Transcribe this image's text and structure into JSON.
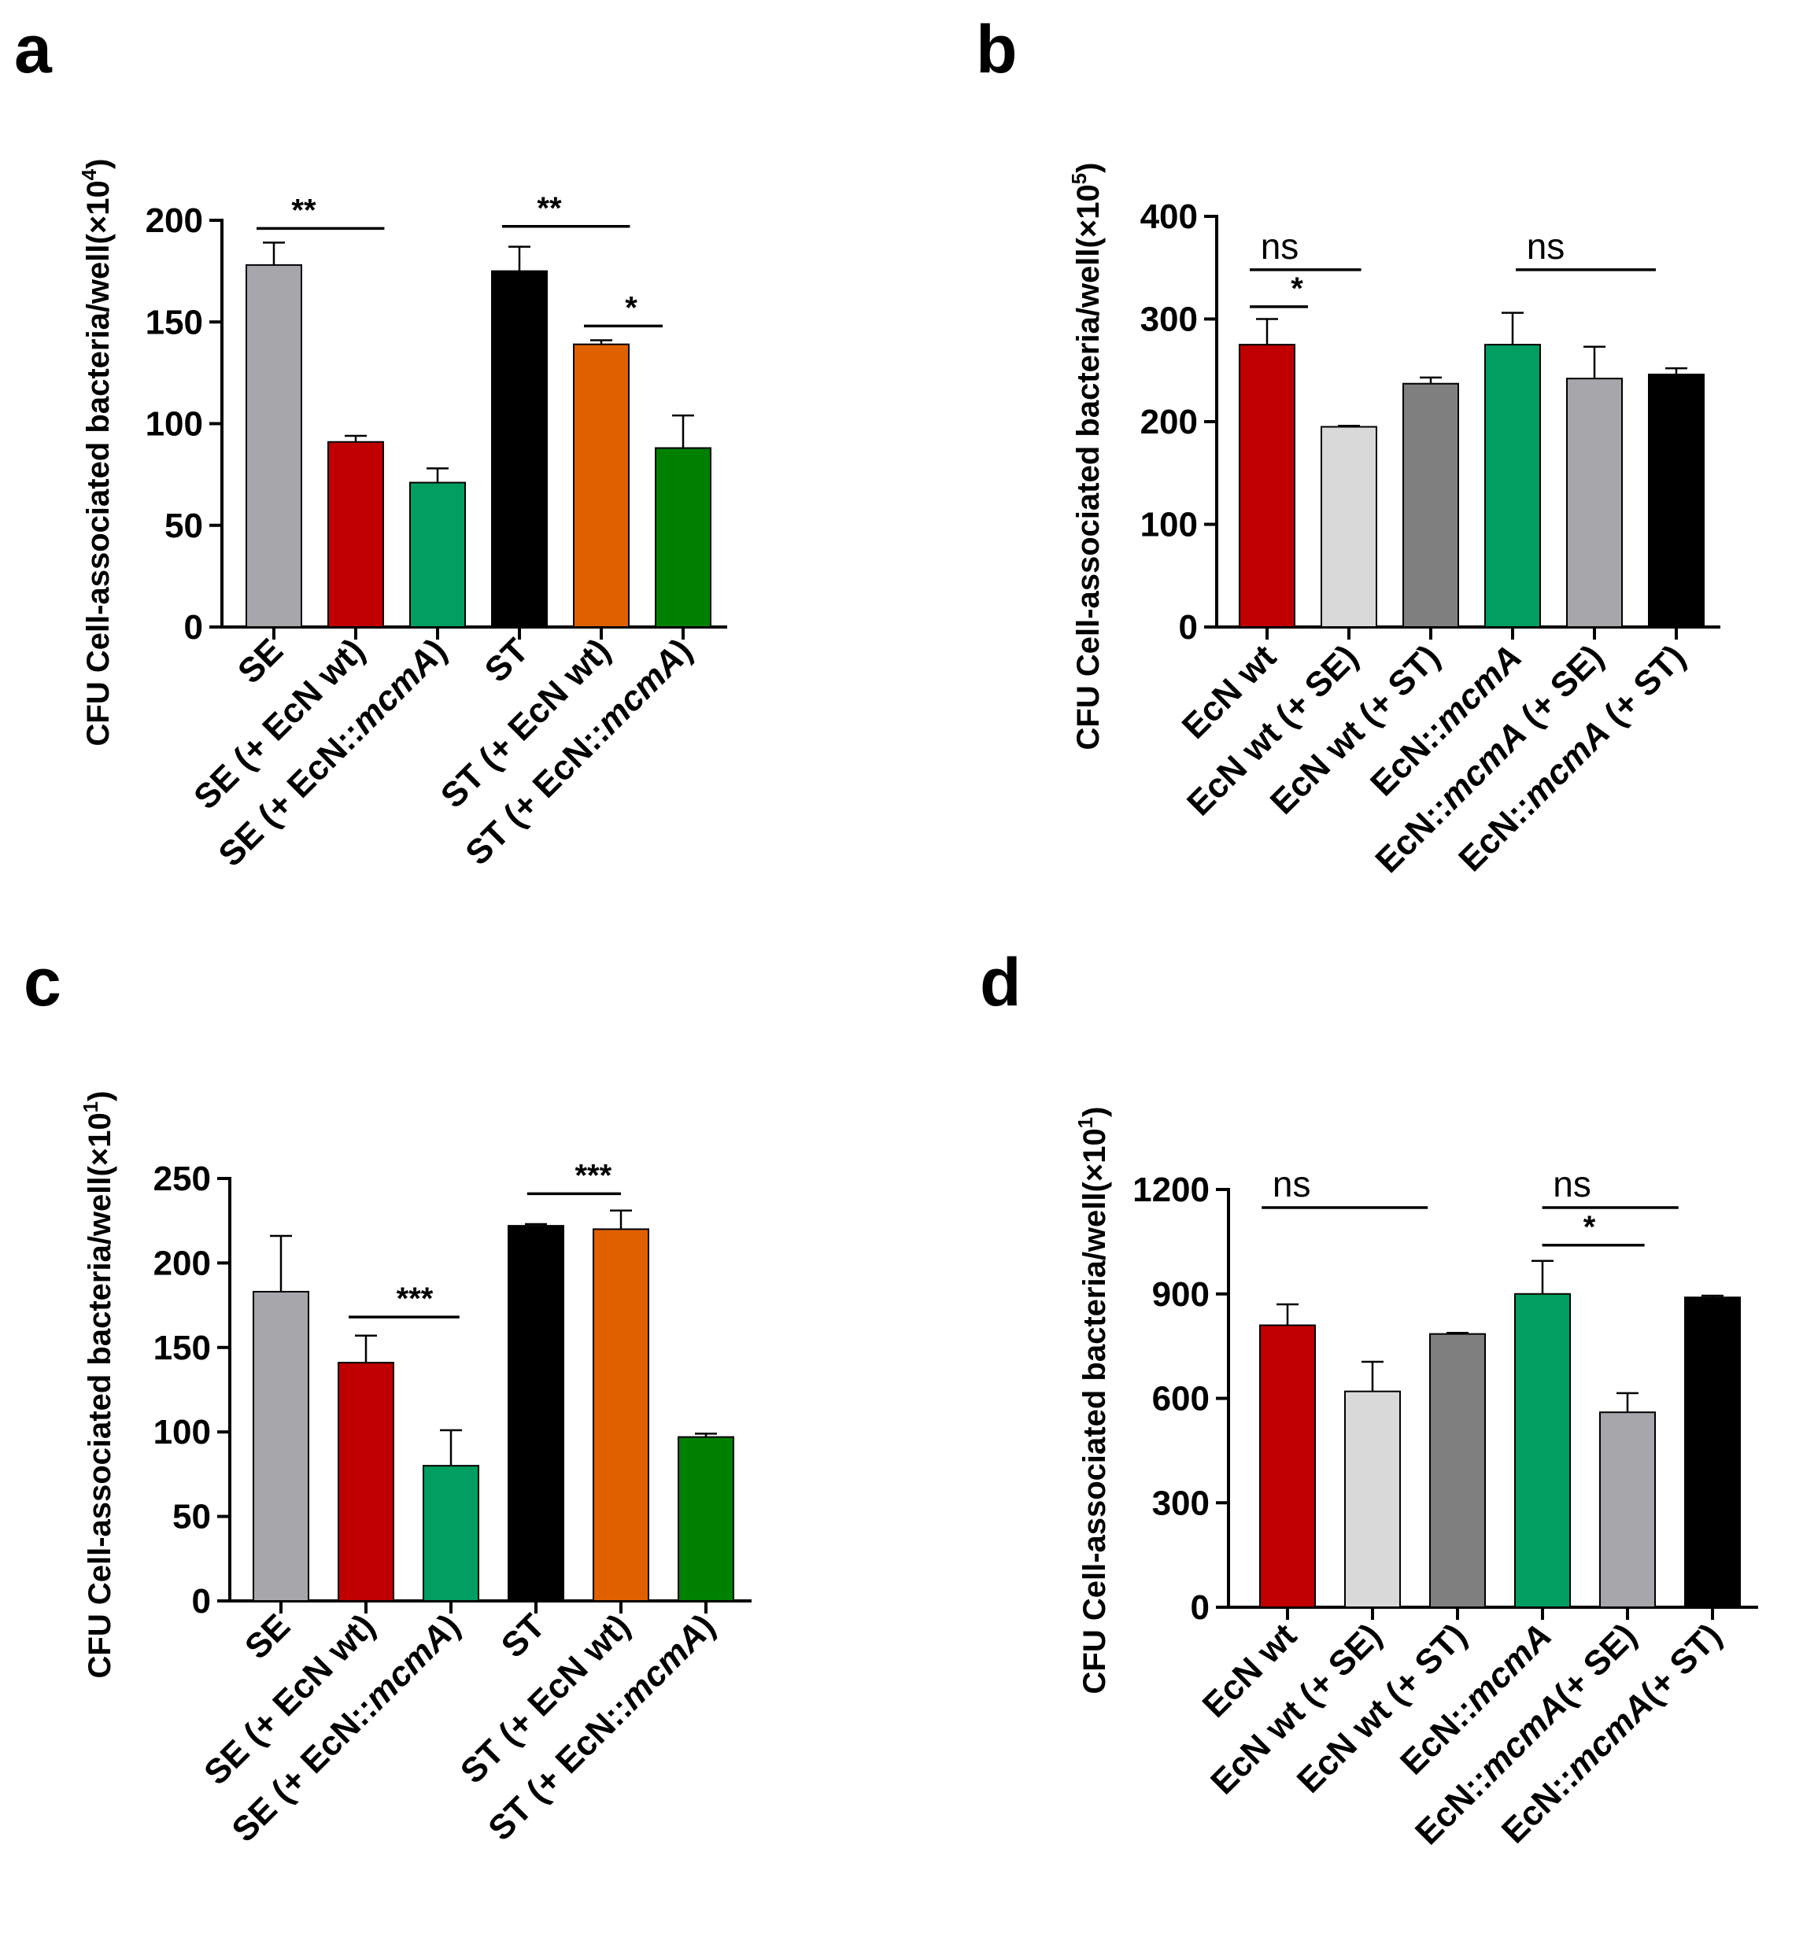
{
  "chart_data": [
    {
      "panel": "a",
      "type": "bar",
      "title": "",
      "xlabel": "",
      "ylabel_prefix": "CFU Cell-associated bacteria/well(×10",
      "ylabel_exp": "4",
      "ylabel_suffix": ")",
      "ylim": [
        0,
        200
      ],
      "yticks": [
        0,
        50,
        100,
        150,
        200
      ],
      "categories": [
        [
          {
            "t": "SE",
            "i": false
          }
        ],
        [
          {
            "t": "SE (+ EcN wt)",
            "i": false
          }
        ],
        [
          {
            "t": "SE (+ EcN::",
            "i": false
          },
          {
            "t": "mcmA",
            "i": true
          },
          {
            "t": ")",
            "i": false
          }
        ],
        [
          {
            "t": "ST",
            "i": false
          }
        ],
        [
          {
            "t": "ST (+ EcN wt)",
            "i": false
          }
        ],
        [
          {
            "t": "ST (+ EcN::",
            "i": false
          },
          {
            "t": "mcmA",
            "i": true
          },
          {
            "t": ")",
            "i": false
          }
        ]
      ],
      "values": [
        178,
        91,
        71,
        175,
        139,
        88
      ],
      "errors": [
        11,
        3,
        7,
        12,
        2,
        16
      ],
      "colors": [
        "#a7a6ab",
        "#c00000",
        "#009e60",
        "#000000",
        "#e06000",
        "#008000"
      ],
      "significance": [
        {
          "from": 0,
          "to": 1.35,
          "y": 196,
          "label": "**"
        },
        {
          "from": 3,
          "to": 4.35,
          "y": 197,
          "label": "**"
        },
        {
          "from": 4,
          "to": 4.75,
          "y": 148,
          "label": "*"
        }
      ]
    },
    {
      "panel": "b",
      "type": "bar",
      "title": "",
      "xlabel": "",
      "ylabel_prefix": "CFU Cell-associated bacteria/well(×10",
      "ylabel_exp": "5",
      "ylabel_suffix": ")",
      "ylim": [
        0,
        400
      ],
      "yticks": [
        0,
        100,
        200,
        300,
        400
      ],
      "categories": [
        [
          {
            "t": "EcN wt",
            "i": false
          }
        ],
        [
          {
            "t": "EcN wt (+ SE)",
            "i": false
          }
        ],
        [
          {
            "t": "EcN wt (+ ST)",
            "i": false
          }
        ],
        [
          {
            "t": "EcN::",
            "i": false
          },
          {
            "t": "mcmA",
            "i": true
          }
        ],
        [
          {
            "t": "EcN::",
            "i": false
          },
          {
            "t": "mcmA",
            "i": true
          },
          {
            "t": " (+ SE)",
            "i": false
          }
        ],
        [
          {
            "t": "EcN::",
            "i": false
          },
          {
            "t": "mcmA",
            "i": true
          },
          {
            "t": " (+ ST)",
            "i": false
          }
        ]
      ],
      "values": [
        275,
        195,
        237,
        275,
        242,
        246
      ],
      "errors": [
        25,
        1,
        6,
        31,
        31,
        6
      ],
      "colors": [
        "#c00000",
        "#d9d9d9",
        "#7f7f7f",
        "#009e60",
        "#a7a6ab",
        "#000000"
      ],
      "significance": [
        {
          "from": 0,
          "to": 1.15,
          "y": 348,
          "label": "ns"
        },
        {
          "from": 0,
          "to": 0.5,
          "y": 312,
          "label": "*"
        },
        {
          "from": 3.25,
          "to": 4.75,
          "y": 348,
          "label": "ns"
        }
      ]
    },
    {
      "panel": "c",
      "type": "bar",
      "title": "",
      "xlabel": "",
      "ylabel_prefix": "CFU Cell-associated bacteria/well(×10",
      "ylabel_exp": "1",
      "ylabel_suffix": ")",
      "ylim": [
        0,
        250
      ],
      "yticks": [
        0,
        50,
        100,
        150,
        200,
        250
      ],
      "categories": [
        [
          {
            "t": "SE",
            "i": false
          }
        ],
        [
          {
            "t": "SE (+ EcN wt)",
            "i": false
          }
        ],
        [
          {
            "t": "SE (+ EcN::",
            "i": false
          },
          {
            "t": "mcmA",
            "i": true
          },
          {
            "t": ")",
            "i": false
          }
        ],
        [
          {
            "t": "ST",
            "i": false
          }
        ],
        [
          {
            "t": "ST (+ EcN wt)",
            "i": false
          }
        ],
        [
          {
            "t": "ST (+ EcN::",
            "i": false
          },
          {
            "t": "mcmA",
            "i": true
          },
          {
            "t": ")",
            "i": false
          }
        ]
      ],
      "values": [
        183,
        141,
        80,
        222,
        220,
        97
      ],
      "errors": [
        33,
        16,
        21,
        1,
        11,
        2
      ],
      "colors": [
        "#a7a6ab",
        "#c00000",
        "#009e60",
        "#000000",
        "#e06000",
        "#008000"
      ],
      "significance": [
        {
          "from": 1,
          "to": 2.1,
          "y": 168,
          "label": "***"
        },
        {
          "from": 3.1,
          "to": 4,
          "y": 241,
          "label": "***"
        }
      ]
    },
    {
      "panel": "d",
      "type": "bar",
      "title": "",
      "xlabel": "",
      "ylabel_prefix": "CFU Cell-associated bacteria/well(×10",
      "ylabel_exp": "1",
      "ylabel_suffix": ")",
      "ylim": [
        0,
        1200
      ],
      "yticks": [
        0,
        300,
        600,
        900,
        1200
      ],
      "categories": [
        [
          {
            "t": "EcN wt",
            "i": false
          }
        ],
        [
          {
            "t": "EcN wt (+ SE)",
            "i": false
          }
        ],
        [
          {
            "t": "EcN wt (+ ST)",
            "i": false
          }
        ],
        [
          {
            "t": "EcN::",
            "i": false
          },
          {
            "t": "mcmA",
            "i": true
          }
        ],
        [
          {
            "t": "EcN::",
            "i": false
          },
          {
            "t": "mcmA",
            "i": true
          },
          {
            "t": "(+ SE)",
            "i": false
          }
        ],
        [
          {
            "t": "EcN::",
            "i": false
          },
          {
            "t": "mcmA",
            "i": true
          },
          {
            "t": "(+ ST)",
            "i": false
          }
        ]
      ],
      "values": [
        810,
        620,
        785,
        900,
        560,
        890
      ],
      "errors": [
        60,
        85,
        3,
        95,
        55,
        5
      ],
      "colors": [
        "#c00000",
        "#d9d9d9",
        "#7f7f7f",
        "#009e60",
        "#a7a6ab",
        "#000000"
      ],
      "significance": [
        {
          "from": -0.1,
          "to": 1.65,
          "y": 1148,
          "label": "ns"
        },
        {
          "from": 3.2,
          "to": 4.6,
          "y": 1148,
          "label": "ns"
        },
        {
          "from": 3.2,
          "to": 4.2,
          "y": 1040,
          "label": "*"
        }
      ]
    }
  ]
}
